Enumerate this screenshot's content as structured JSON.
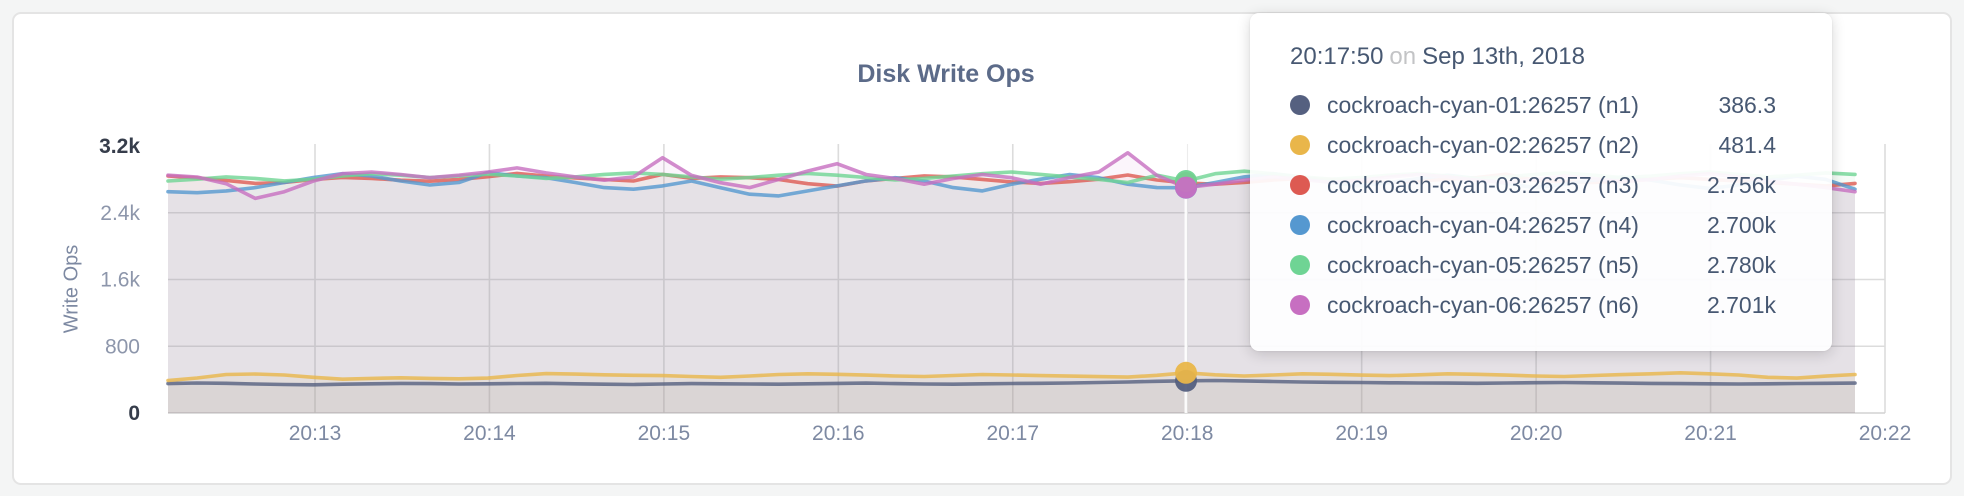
{
  "page": {
    "background": "#f4f5f5"
  },
  "card": {
    "background": "#ffffff",
    "border_color": "#e4e4e4"
  },
  "tooltip": {
    "time": "20:17:50",
    "on_word": "on",
    "date": "Sep 13th, 2018",
    "rows": [
      {
        "name": "cockroach-cyan-01:26257 (n1)",
        "value": "386.3",
        "color": "#556080"
      },
      {
        "name": "cockroach-cyan-02:26257 (n2)",
        "value": "481.4",
        "color": "#e9b64a"
      },
      {
        "name": "cockroach-cyan-03:26257 (n3)",
        "value": "2.756k",
        "color": "#dd5a52"
      },
      {
        "name": "cockroach-cyan-04:26257 (n4)",
        "value": "2.700k",
        "color": "#5598d0"
      },
      {
        "name": "cockroach-cyan-05:26257 (n5)",
        "value": "2.780k",
        "color": "#6fd494"
      },
      {
        "name": "cockroach-cyan-06:26257 (n6)",
        "value": "2.701k",
        "color": "#c76fc1"
      }
    ]
  },
  "chart_data": {
    "type": "line",
    "title": "Disk Write Ops",
    "xlabel": "",
    "ylabel": "Write Ops",
    "ylim": [
      0,
      3200
    ],
    "grid": true,
    "legend": "tooltip",
    "x_ticks": [
      "20:13",
      "20:14",
      "20:15",
      "20:16",
      "20:17",
      "20:18",
      "20:19",
      "20:20",
      "20:21",
      "20:22"
    ],
    "y_ticks": [
      {
        "label": "0",
        "value": 0,
        "grid": false,
        "emphasis": true
      },
      {
        "label": "800",
        "value": 800,
        "grid": true,
        "emphasis": false
      },
      {
        "label": "1.6k",
        "value": 1600,
        "grid": true,
        "emphasis": false
      },
      {
        "label": "2.4k",
        "value": 2400,
        "grid": true,
        "emphasis": false
      },
      {
        "label": "3.2k",
        "value": 3200,
        "grid": false,
        "emphasis": true
      }
    ],
    "hover": {
      "index": 35,
      "time": "20:17:50",
      "date": "Sep 13th, 2018"
    },
    "series": [
      {
        "name": "cockroach-cyan-01:26257 (n1)",
        "color": "#556080",
        "hover_value": 386.3,
        "values": [
          352,
          360,
          356,
          348,
          342,
          338,
          345,
          350,
          355,
          352,
          348,
          350,
          353,
          356,
          350,
          345,
          342,
          348,
          352,
          350,
          347,
          345,
          350,
          355,
          358,
          352,
          348,
          345,
          350,
          353,
          356,
          360,
          365,
          372,
          380,
          386.3,
          390,
          385,
          378,
          372,
          368,
          365,
          362,
          360,
          358,
          356,
          360,
          363,
          366,
          362,
          358,
          355,
          352,
          350,
          348,
          350,
          353,
          356,
          358
        ]
      },
      {
        "name": "cockroach-cyan-02:26257 (n2)",
        "color": "#e9b64a",
        "hover_value": 481.4,
        "values": [
          390,
          420,
          462,
          468,
          455,
          428,
          405,
          415,
          422,
          415,
          410,
          418,
          450,
          472,
          466,
          458,
          452,
          448,
          438,
          428,
          444,
          462,
          470,
          464,
          454,
          444,
          438,
          450,
          462,
          456,
          448,
          442,
          436,
          430,
          452,
          481.4,
          458,
          443,
          455,
          470,
          464,
          454,
          448,
          458,
          470,
          464,
          454,
          444,
          438,
          450,
          460,
          470,
          482,
          470,
          455,
          428,
          418,
          442,
          462
        ]
      },
      {
        "name": "cockroach-cyan-03:26257 (n3)",
        "color": "#dd5a52",
        "hover_value": 2756,
        "values": [
          2840,
          2818,
          2788,
          2752,
          2762,
          2800,
          2822,
          2812,
          2790,
          2778,
          2800,
          2832,
          2872,
          2840,
          2818,
          2798,
          2780,
          2860,
          2812,
          2830,
          2820,
          2798,
          2748,
          2720,
          2782,
          2812,
          2842,
          2830,
          2800,
          2770,
          2752,
          2772,
          2802,
          2852,
          2792,
          2756,
          2742,
          2762,
          2792,
          2812,
          2800,
          2780,
          2762,
          2782,
          2802,
          2822,
          2862,
          2790,
          2772,
          2762,
          2782,
          2802,
          2820,
          2800,
          2780,
          2762,
          2742,
          2722,
          2752
        ]
      },
      {
        "name": "cockroach-cyan-04:26257 (n4)",
        "color": "#5598d0",
        "hover_value": 2700,
        "values": [
          2652,
          2640,
          2662,
          2702,
          2762,
          2822,
          2868,
          2840,
          2780,
          2732,
          2762,
          2882,
          2840,
          2820,
          2762,
          2702,
          2682,
          2722,
          2780,
          2700,
          2622,
          2602,
          2662,
          2722,
          2782,
          2820,
          2780,
          2702,
          2662,
          2742,
          2802,
          2858,
          2820,
          2742,
          2702,
          2700,
          2762,
          2830,
          2868,
          2820,
          2762,
          2722,
          2762,
          2810,
          2850,
          2810,
          2752,
          2702,
          2742,
          2790,
          2830,
          2790,
          2732,
          2692,
          2732,
          2790,
          2838,
          2800,
          2682
        ]
      },
      {
        "name": "cockroach-cyan-05:26257 (n5)",
        "color": "#6fd494",
        "hover_value": 2780,
        "values": [
          2780,
          2802,
          2830,
          2812,
          2782,
          2802,
          2840,
          2868,
          2850,
          2822,
          2840,
          2862,
          2840,
          2812,
          2830,
          2860,
          2878,
          2860,
          2830,
          2802,
          2822,
          2850,
          2870,
          2850,
          2822,
          2792,
          2812,
          2840,
          2868,
          2888,
          2860,
          2830,
          2800,
          2762,
          2850,
          2780,
          2868,
          2898,
          2868,
          2830,
          2802,
          2822,
          2850,
          2870,
          2840,
          2812,
          2830,
          2860,
          2878,
          2850,
          2822,
          2840,
          2868,
          2888,
          2860,
          2830,
          2850,
          2878,
          2860
        ]
      },
      {
        "name": "cockroach-cyan-06:26257 (n6)",
        "color": "#c76fc1",
        "hover_value": 2701,
        "values": [
          2850,
          2828,
          2748,
          2572,
          2652,
          2780,
          2868,
          2888,
          2858,
          2820,
          2850,
          2888,
          2938,
          2878,
          2830,
          2790,
          2830,
          3060,
          2848,
          2760,
          2702,
          2800,
          2900,
          2988,
          2858,
          2810,
          2742,
          2810,
          2858,
          2820,
          2742,
          2822,
          2888,
          3118,
          2848,
          2701,
          2742,
          2790,
          2830,
          2800,
          2762,
          2790,
          2830,
          2858,
          2830,
          2790,
          2762,
          2800,
          2840,
          2810,
          2772,
          2800,
          2840,
          2868,
          2830,
          2782,
          2742,
          2702,
          2652
        ]
      }
    ]
  }
}
